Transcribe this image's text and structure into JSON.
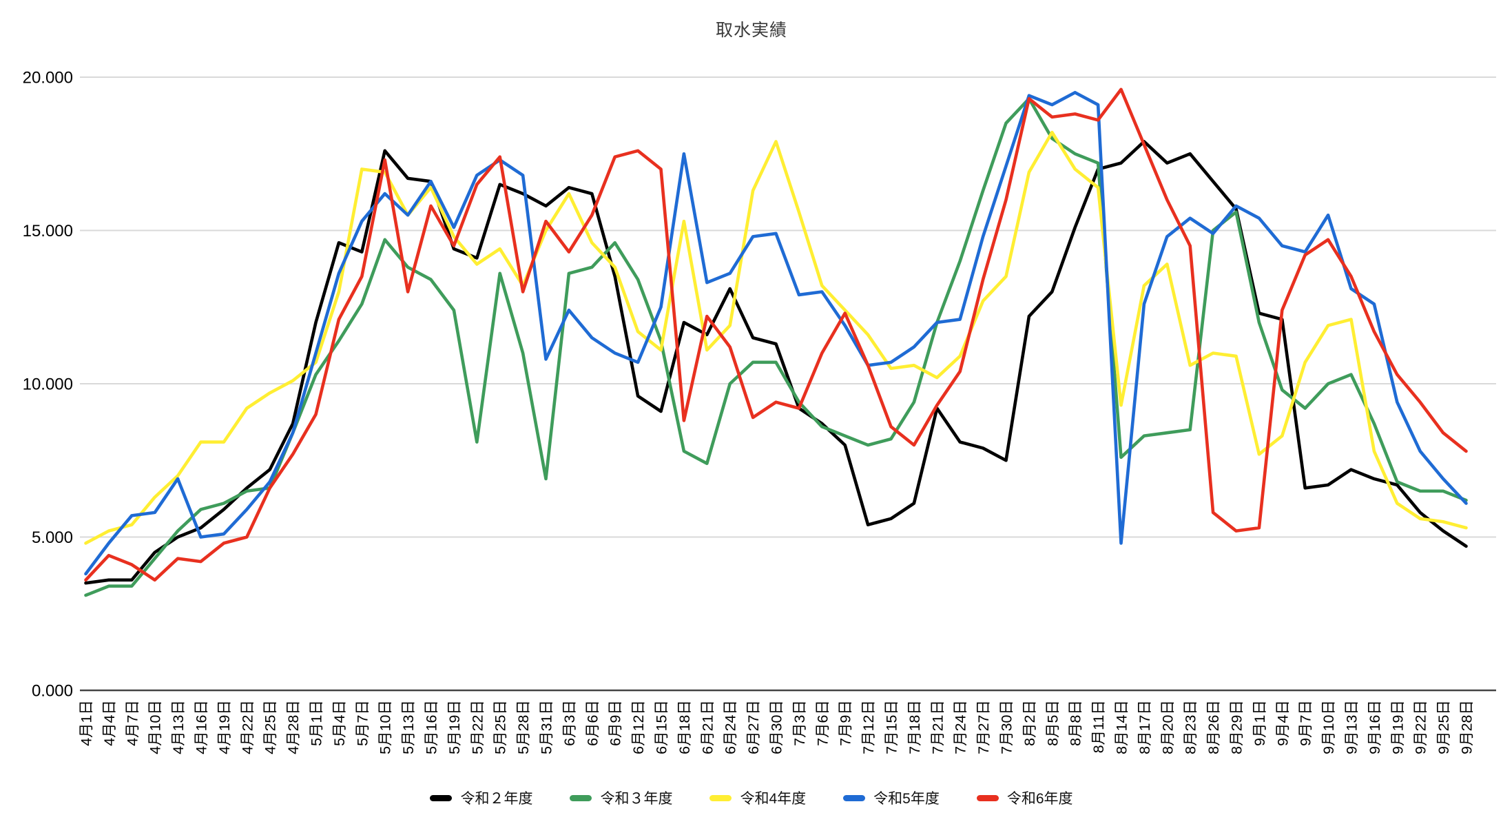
{
  "title": "取水実績",
  "y_axis": {
    "tick_labels": [
      "0.000",
      "5.000",
      "10.000",
      "15.000",
      "20.000"
    ]
  },
  "chart_data": {
    "type": "line",
    "title": "取水実績",
    "xlabel": "",
    "ylabel": "",
    "ylim": [
      0,
      20
    ],
    "grid": true,
    "legend_position": "bottom",
    "y_ticks": [
      {
        "value": 0,
        "label": "0.000"
      },
      {
        "value": 5,
        "label": "5.000"
      },
      {
        "value": 10,
        "label": "10.000"
      },
      {
        "value": 15,
        "label": "15.000"
      },
      {
        "value": 20,
        "label": "20.000"
      }
    ],
    "categories": [
      "4月1日",
      "4月4日",
      "4月7日",
      "4月10日",
      "4月13日",
      "4月16日",
      "4月19日",
      "4月22日",
      "4月25日",
      "4月28日",
      "5月1日",
      "5月4日",
      "5月7日",
      "5月10日",
      "5月13日",
      "5月16日",
      "5月19日",
      "5月22日",
      "5月25日",
      "5月28日",
      "5月31日",
      "6月3日",
      "6月6日",
      "6月9日",
      "6月12日",
      "6月15日",
      "6月18日",
      "6月21日",
      "6月24日",
      "6月27日",
      "6月30日",
      "7月3日",
      "7月6日",
      "7月9日",
      "7月12日",
      "7月15日",
      "7月18日",
      "7月21日",
      "7月24日",
      "7月27日",
      "7月30日",
      "8月2日",
      "8月5日",
      "8月8日",
      "8月11日",
      "8月14日",
      "8月17日",
      "8月20日",
      "8月23日",
      "8月26日",
      "8月29日",
      "9月1日",
      "9月4日",
      "9月7日",
      "9月10日",
      "9月13日",
      "9月16日",
      "9月19日",
      "9月22日",
      "9月25日",
      "9月28日"
    ],
    "series": [
      {
        "name": "令和２年度",
        "color": "#000000",
        "values": [
          3.5,
          3.6,
          3.6,
          4.5,
          5.0,
          5.3,
          5.9,
          6.6,
          7.2,
          8.7,
          12.0,
          14.6,
          14.3,
          17.6,
          16.7,
          16.6,
          14.4,
          14.1,
          16.5,
          16.2,
          15.8,
          16.4,
          16.2,
          13.5,
          9.6,
          9.1,
          12.0,
          11.6,
          13.1,
          11.5,
          11.3,
          9.2,
          8.7,
          8.0,
          5.4,
          5.6,
          6.1,
          9.2,
          8.1,
          7.9,
          7.5,
          12.2,
          13.0,
          15.1,
          17.0,
          17.2,
          17.9,
          17.2,
          17.5,
          16.6,
          15.7,
          12.3,
          12.1,
          6.6,
          6.7,
          7.2,
          6.9,
          6.7,
          5.8,
          5.2,
          4.7
        ]
      },
      {
        "name": "令和３年度",
        "color": "#3f9c5b",
        "values": [
          3.1,
          3.4,
          3.4,
          4.3,
          5.2,
          5.9,
          6.1,
          6.5,
          6.6,
          8.4,
          10.3,
          11.4,
          12.6,
          14.7,
          13.8,
          13.4,
          12.4,
          8.1,
          13.6,
          11.0,
          6.9,
          13.6,
          13.8,
          14.6,
          13.4,
          11.4,
          7.8,
          7.4,
          10.0,
          10.7,
          10.7,
          9.4,
          8.6,
          8.3,
          8.0,
          8.2,
          9.4,
          12.0,
          14.0,
          16.3,
          18.5,
          19.3,
          18.0,
          17.5,
          17.2,
          7.6,
          8.3,
          8.4,
          8.5,
          15.0,
          15.6,
          12.0,
          9.8,
          9.2,
          10.0,
          10.3,
          8.7,
          6.8,
          6.5,
          6.5,
          6.2
        ]
      },
      {
        "name": "令和4年度",
        "color": "#ffee33",
        "values": [
          4.8,
          5.2,
          5.4,
          6.3,
          7.0,
          8.1,
          8.1,
          9.2,
          9.7,
          10.1,
          10.7,
          13.0,
          17.0,
          16.9,
          15.5,
          16.4,
          14.8,
          13.9,
          14.4,
          13.2,
          15.0,
          16.2,
          14.6,
          13.8,
          11.7,
          11.1,
          15.3,
          11.1,
          11.9,
          16.3,
          17.9,
          15.6,
          13.2,
          12.4,
          11.6,
          10.5,
          10.6,
          10.2,
          10.9,
          12.7,
          13.5,
          16.9,
          18.2,
          17.0,
          16.4,
          9.3,
          13.2,
          13.9,
          10.6,
          11.0,
          10.9,
          7.7,
          8.3,
          10.7,
          11.9,
          12.1,
          7.8,
          6.1,
          5.6,
          5.5,
          5.3
        ]
      },
      {
        "name": "令和5年度",
        "color": "#1f6bd4",
        "values": [
          3.8,
          4.8,
          5.7,
          5.8,
          6.9,
          5.0,
          5.1,
          5.9,
          6.8,
          8.4,
          11.0,
          13.6,
          15.3,
          16.2,
          15.5,
          16.6,
          15.1,
          16.8,
          17.3,
          16.8,
          10.8,
          12.4,
          11.5,
          11.0,
          10.7,
          12.5,
          17.5,
          13.3,
          13.6,
          14.8,
          14.9,
          12.9,
          13.0,
          11.9,
          10.6,
          10.7,
          11.2,
          12.0,
          12.1,
          14.8,
          17.1,
          19.4,
          19.1,
          19.5,
          19.1,
          4.8,
          12.6,
          14.8,
          15.4,
          14.9,
          15.8,
          15.4,
          14.5,
          14.3,
          15.5,
          13.1,
          12.6,
          9.4,
          7.8,
          6.9,
          6.1
        ]
      },
      {
        "name": "令和6年度",
        "color": "#e8301f",
        "values": [
          3.6,
          4.4,
          4.1,
          3.6,
          4.3,
          4.2,
          4.8,
          5.0,
          6.6,
          7.7,
          9.0,
          12.1,
          13.5,
          17.3,
          13.0,
          15.8,
          14.5,
          16.5,
          17.4,
          13.0,
          15.3,
          14.3,
          15.5,
          17.4,
          17.6,
          17.0,
          8.8,
          12.2,
          11.2,
          8.9,
          9.4,
          9.2,
          11.0,
          12.3,
          10.6,
          8.6,
          8.0,
          9.3,
          10.4,
          13.4,
          16.0,
          19.3,
          18.7,
          18.8,
          18.6,
          19.6,
          17.8,
          16.0,
          14.5,
          5.8,
          5.2,
          5.3,
          12.4,
          14.2,
          14.7,
          13.5,
          11.7,
          10.3,
          9.4,
          8.4,
          7.8
        ]
      }
    ]
  }
}
